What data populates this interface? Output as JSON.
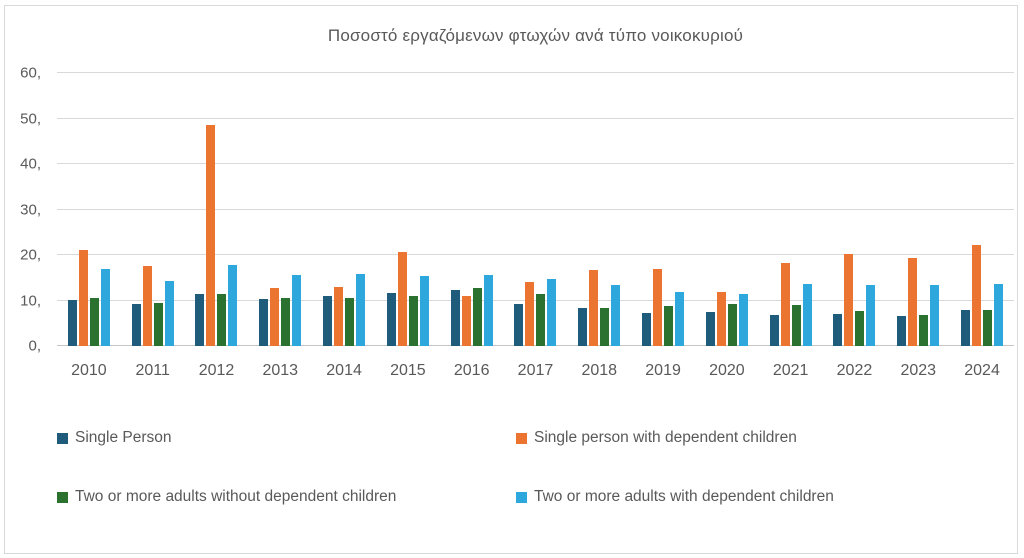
{
  "title": "Ποσοστό εργαζόμενων φτωχών ανά τύπο νοικοκυριού",
  "colors": {
    "series1": "#1F5C7C",
    "series2": "#EC7431",
    "series3": "#2B7230",
    "series4": "#2EA8DC",
    "gridline": "#D9D9D9",
    "axis_line": "#C6C6C6",
    "text": "#595959"
  },
  "y_axis": {
    "tick_labels": [
      "0,",
      "10,",
      "20,",
      "30,",
      "40,",
      "50,",
      "60,"
    ],
    "tick_values": [
      0,
      10,
      20,
      30,
      40,
      50,
      60
    ]
  },
  "chart_data": {
    "type": "bar",
    "title": "Ποσοστό εργαζόμενων φτωχών ανά τύπο νοικοκυριού",
    "xlabel": "",
    "ylabel": "",
    "ylim": [
      0,
      60
    ],
    "grid": true,
    "legend_position": "bottom",
    "categories": [
      "2010",
      "2011",
      "2012",
      "2013",
      "2014",
      "2015",
      "2016",
      "2017",
      "2018",
      "2019",
      "2020",
      "2021",
      "2022",
      "2023",
      "2024"
    ],
    "series": [
      {
        "name": "Single Person",
        "color": "#1F5C7C",
        "values": [
          10.1,
          9.3,
          11.4,
          10.4,
          10.9,
          11.7,
          12.3,
          9.2,
          8.3,
          7.2,
          7.5,
          6.9,
          7.1,
          6.5,
          8.0
        ]
      },
      {
        "name": "Single person with dependent children",
        "color": "#EC7431",
        "values": [
          21.0,
          17.5,
          48.6,
          12.7,
          12.9,
          20.6,
          11.1,
          14.0,
          16.8,
          17.0,
          11.9,
          18.2,
          20.2,
          19.3,
          22.1
        ]
      },
      {
        "name": "Two or more adults without dependent children",
        "color": "#2B7230",
        "values": [
          10.6,
          9.5,
          11.4,
          10.6,
          10.6,
          11.0,
          12.8,
          11.5,
          8.3,
          8.7,
          9.2,
          9.0,
          7.8,
          6.8,
          7.9
        ]
      },
      {
        "name": "Two or more adults with dependent children",
        "color": "#2EA8DC",
        "values": [
          17.0,
          14.3,
          17.8,
          15.7,
          15.8,
          15.4,
          15.6,
          14.7,
          13.5,
          11.9,
          11.5,
          13.7,
          13.5,
          13.4,
          13.6
        ]
      }
    ]
  },
  "legend": {
    "rows": [
      [
        {
          "label": "Single Person",
          "color": "#1F5C7C"
        },
        {
          "label": "Single person with dependent children",
          "color": "#EC7431"
        }
      ],
      [
        {
          "label": "Two or more adults without dependent children",
          "color": "#2B7230"
        },
        {
          "label": "Two or more adults with dependent children",
          "color": "#2EA8DC"
        }
      ]
    ]
  }
}
